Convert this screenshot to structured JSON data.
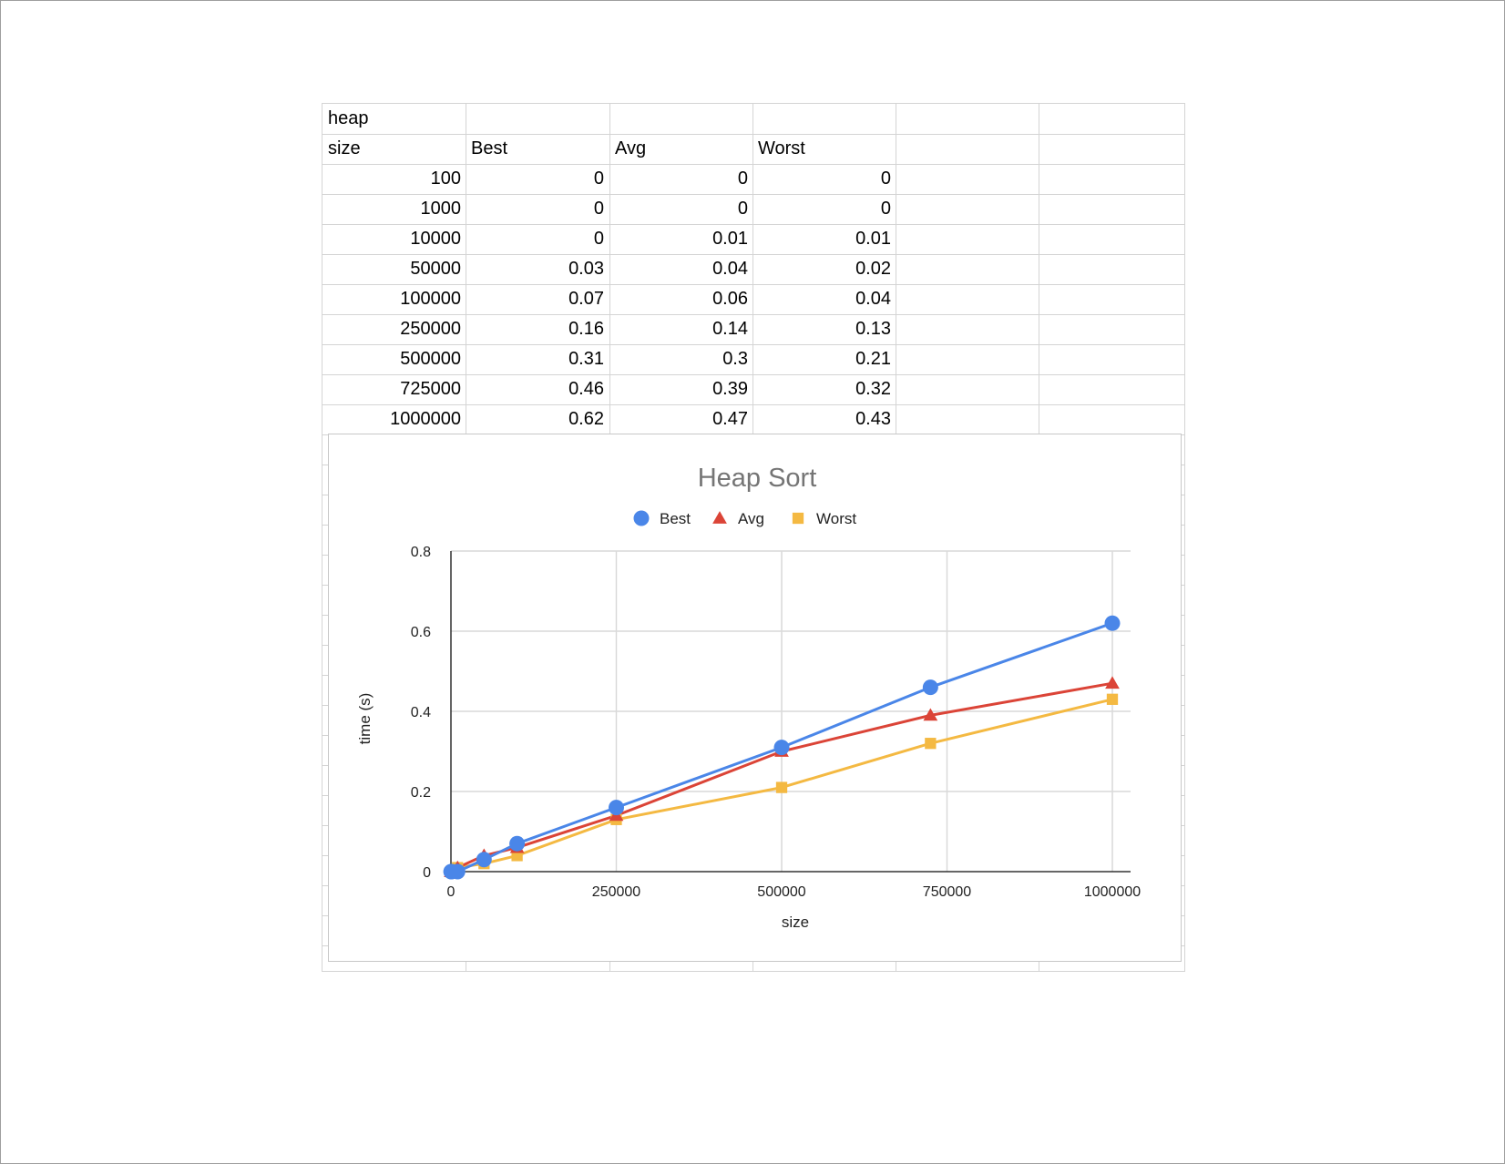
{
  "table": {
    "title": "heap",
    "headers": [
      "size",
      "Best",
      "Avg",
      "Worst"
    ],
    "rows": [
      [
        "100",
        "0",
        "0",
        "0"
      ],
      [
        "1000",
        "0",
        "0",
        "0"
      ],
      [
        "10000",
        "0",
        "0.01",
        "0.01"
      ],
      [
        "50000",
        "0.03",
        "0.04",
        "0.02"
      ],
      [
        "100000",
        "0.07",
        "0.06",
        "0.04"
      ],
      [
        "250000",
        "0.16",
        "0.14",
        "0.13"
      ],
      [
        "500000",
        "0.31",
        "0.3",
        "0.21"
      ],
      [
        "725000",
        "0.46",
        "0.39",
        "0.32"
      ],
      [
        "1000000",
        "0.62",
        "0.47",
        "0.43"
      ]
    ]
  },
  "chart_data": {
    "type": "line",
    "title": "Heap Sort",
    "xlabel": "size",
    "ylabel": "time (s)",
    "x": [
      100,
      1000,
      10000,
      50000,
      100000,
      250000,
      500000,
      725000,
      1000000
    ],
    "series": [
      {
        "name": "Best",
        "values": [
          0,
          0,
          0,
          0.03,
          0.07,
          0.16,
          0.31,
          0.46,
          0.62
        ],
        "color": "#4a86e8",
        "marker": "circle"
      },
      {
        "name": "Avg",
        "values": [
          0,
          0,
          0.01,
          0.04,
          0.06,
          0.14,
          0.3,
          0.39,
          0.47
        ],
        "color": "#db4437",
        "marker": "triangle"
      },
      {
        "name": "Worst",
        "values": [
          0,
          0,
          0.01,
          0.02,
          0.04,
          0.13,
          0.21,
          0.32,
          0.43
        ],
        "color": "#f4b942",
        "marker": "square"
      }
    ],
    "xlim": [
      0,
      1000000
    ],
    "ylim": [
      0,
      0.8
    ],
    "xticks": [
      "0",
      "250000",
      "500000",
      "750000",
      "1000000"
    ],
    "yticks": [
      "0",
      "0.2",
      "0.4",
      "0.6",
      "0.8"
    ],
    "grid": true,
    "legend": "top-center"
  }
}
